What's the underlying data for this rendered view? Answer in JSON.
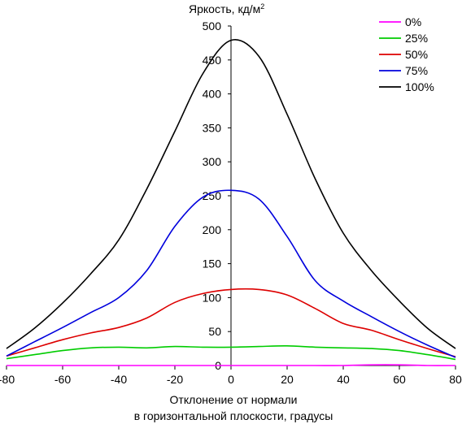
{
  "chart_data": {
    "type": "line",
    "title": "",
    "ylabel": "Яркость, кд/м",
    "ylabel_sup": "2",
    "xlabel_line1": "Отклонение от нормали",
    "xlabel_line2": "в горизонтальной плоскости, градусы",
    "xlim": [
      -80,
      80
    ],
    "ylim": [
      0,
      500
    ],
    "xticks": [
      -80,
      -60,
      -40,
      -20,
      0,
      20,
      40,
      60,
      80
    ],
    "yticks": [
      0,
      50,
      100,
      150,
      200,
      250,
      300,
      350,
      400,
      450,
      500
    ],
    "grid": false,
    "legend_position": "top-right",
    "x": [
      -80,
      -70,
      -60,
      -50,
      -40,
      -30,
      -20,
      -10,
      0,
      10,
      20,
      30,
      40,
      50,
      60,
      70,
      80
    ],
    "series": [
      {
        "name": "0%",
        "color": "#ff00ff",
        "values": [
          0,
          0,
          0,
          0,
          0,
          0,
          0,
          0,
          0,
          0,
          0,
          0,
          0,
          1,
          1,
          0,
          0
        ]
      },
      {
        "name": "25%",
        "color": "#00cc00",
        "values": [
          10,
          16,
          22,
          26,
          27,
          26,
          28,
          27,
          27,
          28,
          29,
          27,
          26,
          25,
          22,
          16,
          9
        ]
      },
      {
        "name": "50%",
        "color": "#dd0000",
        "values": [
          14,
          26,
          38,
          48,
          56,
          70,
          93,
          106,
          112,
          112,
          104,
          84,
          62,
          52,
          38,
          25,
          13
        ]
      },
      {
        "name": "75%",
        "color": "#0000dd",
        "values": [
          14,
          35,
          56,
          78,
          100,
          140,
          205,
          248,
          258,
          245,
          190,
          125,
          95,
          72,
          50,
          30,
          12
        ]
      },
      {
        "name": "100%",
        "color": "#000000",
        "values": [
          25,
          55,
          92,
          135,
          185,
          260,
          345,
          430,
          479,
          455,
          370,
          275,
          195,
          140,
          95,
          55,
          25
        ]
      }
    ]
  }
}
